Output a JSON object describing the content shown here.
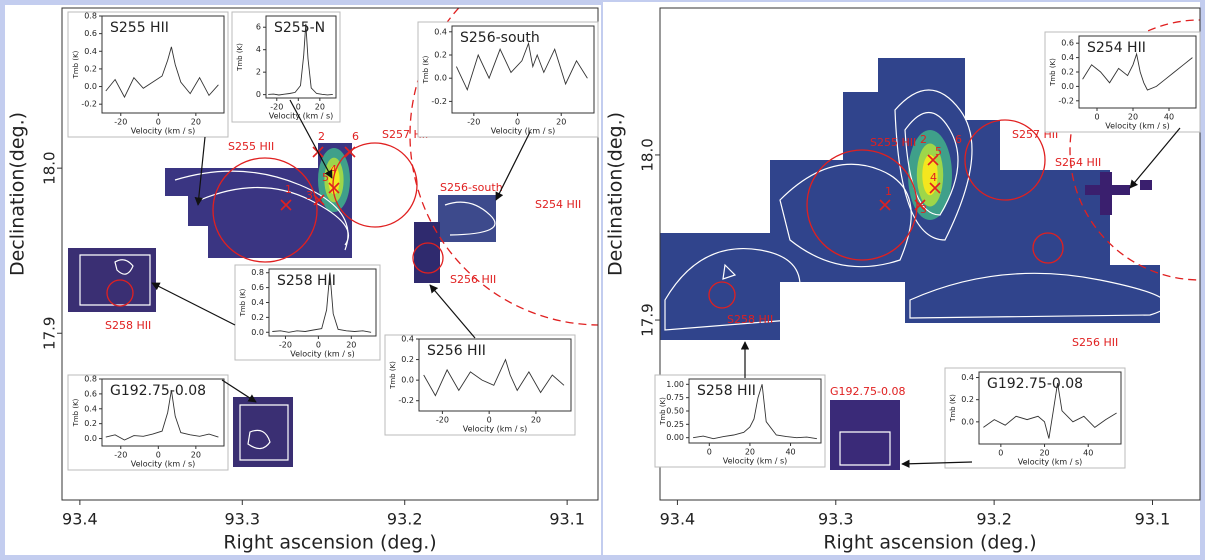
{
  "figure": {
    "spectrum_xlabel": "Velocity (km / s)",
    "spectrum_ylabel": "Tmb (K)",
    "panels": [
      {
        "xlabel": "Right ascension (deg.)",
        "ylabel": "Declination(deg.)",
        "xlim": [
          93.411,
          93.081
        ],
        "ylim": [
          17.799,
          18.097
        ],
        "xticks": [
          93.4,
          93.3,
          93.2,
          93.1
        ],
        "yticks": [
          {
            "value": 17.9,
            "label": "17.9"
          },
          {
            "value": 18,
            "label": "18.0"
          }
        ],
        "annotations": [
          "S255 HII",
          "S257 HII",
          "S256-south",
          "S254 HII",
          "S256 HII",
          "S258 HII",
          "2",
          "6",
          "1",
          "3",
          "5",
          "4"
        ],
        "insets": [
          {
            "title": "S255 HII",
            "xlim": [
              -30,
              35
            ],
            "ylim": [
              -0.3,
              0.8
            ],
            "xticks": [
              -20,
              0,
              20
            ],
            "yticks": [
              -0.2,
              {
                "value": 0,
                "label": "0.0"
              },
              0.2,
              0.4,
              0.6,
              0.8
            ],
            "x": [
              -28,
              -23,
              -18,
              -13,
              -8,
              -3,
              2,
              5,
              7,
              9,
              12,
              17,
              22,
              27,
              32
            ],
            "values": [
              -0.05,
              0.08,
              -0.12,
              0.1,
              -0.02,
              0.05,
              0.12,
              0.3,
              0.45,
              0.25,
              0.05,
              -0.08,
              0.1,
              -0.1,
              0.02
            ]
          },
          {
            "title": "S255-N",
            "xlim": [
              -30,
              35
            ],
            "ylim": [
              -0.3,
              7
            ],
            "xticks": [
              -20,
              0,
              20
            ],
            "yticks": [
              0,
              2,
              4,
              6
            ],
            "x": [
              -28,
              -23,
              -18,
              -13,
              -8,
              -3,
              2,
              5,
              7,
              9,
              12,
              17,
              22,
              27,
              32
            ],
            "values": [
              0.02,
              0.05,
              -0.03,
              0.04,
              0.1,
              0.2,
              0.8,
              3.5,
              6.3,
              3.2,
              0.6,
              0.1,
              0.03,
              -0.02,
              0.02
            ]
          },
          {
            "title": "S256-south",
            "xlim": [
              -30,
              35
            ],
            "ylim": [
              -0.3,
              0.45
            ],
            "xticks": [
              -20,
              0,
              20
            ],
            "yticks": [
              -0.2,
              {
                "value": 0,
                "label": "0.0"
              },
              0.2,
              0.4
            ],
            "x": [
              -28,
              -23,
              -18,
              -13,
              -8,
              -3,
              2,
              5,
              7,
              9,
              12,
              17,
              22,
              27,
              32
            ],
            "values": [
              0.1,
              -0.1,
              0.2,
              0,
              0.25,
              0.05,
              0.15,
              0.3,
              0.1,
              0.2,
              0.05,
              0.25,
              -0.05,
              0.15,
              0
            ]
          },
          {
            "title": "S258 HII",
            "xlim": [
              -30,
              35
            ],
            "ylim": [
              -0.05,
              0.85
            ],
            "xticks": [
              -20,
              0,
              20
            ],
            "yticks": [
              {
                "value": 0,
                "label": "0.0"
              },
              0.2,
              0.4,
              0.6,
              0.8
            ],
            "x": [
              -28,
              -23,
              -18,
              -13,
              -8,
              -3,
              2,
              5,
              7,
              9,
              12,
              17,
              22,
              27,
              32
            ],
            "values": [
              0.01,
              0.02,
              0,
              0.02,
              0.01,
              0.03,
              0.05,
              0.3,
              0.8,
              0.25,
              0.04,
              0.02,
              0.01,
              0.02,
              0
            ]
          },
          {
            "title": "G192.75-0.08",
            "xlim": [
              -30,
              35
            ],
            "ylim": [
              -0.1,
              0.8
            ],
            "xticks": [
              -20,
              0,
              20
            ],
            "yticks": [
              {
                "value": 0,
                "label": "0.0"
              },
              0.2,
              0.4,
              0.6,
              0.8
            ],
            "x": [
              -28,
              -23,
              -18,
              -13,
              -8,
              -3,
              2,
              5,
              7,
              9,
              12,
              17,
              22,
              27,
              32
            ],
            "values": [
              0.02,
              0.05,
              -0.02,
              0.04,
              0.03,
              0.06,
              0.1,
              0.35,
              0.65,
              0.3,
              0.08,
              0.05,
              0.03,
              0.06,
              0.02
            ]
          },
          {
            "title": "S256 HII",
            "xlim": [
              -30,
              35
            ],
            "ylim": [
              -0.3,
              0.4
            ],
            "xticks": [
              -20,
              0,
              20
            ],
            "yticks": [
              -0.2,
              {
                "value": 0,
                "label": "0.0"
              },
              0.2,
              0.4
            ],
            "x": [
              -28,
              -23,
              -18,
              -13,
              -8,
              -3,
              2,
              5,
              7,
              9,
              12,
              17,
              22,
              27,
              32
            ],
            "values": [
              0.05,
              -0.15,
              0.1,
              -0.1,
              0.08,
              0,
              -0.05,
              0.1,
              0.2,
              0.05,
              -0.1,
              0.08,
              -0.12,
              0.05,
              -0.05
            ]
          }
        ]
      },
      {
        "xlabel": "Right ascension (deg.)",
        "ylabel": "Declination(deg.)",
        "xlim": [
          93.411,
          93.07
        ],
        "ylim": [
          17.791,
          18.089
        ],
        "xticks": [
          93.4,
          93.3,
          93.2,
          93.1
        ],
        "yticks": [
          {
            "value": 17.9,
            "label": "17.9"
          },
          {
            "value": 18,
            "label": "18.0"
          }
        ],
        "annotations": [
          "S255 HII",
          "S257 HII",
          "S254 HII",
          "S256 HII",
          "S258 HII",
          "G192.75-0.08",
          "1",
          "2",
          "3",
          "4",
          "5",
          "6"
        ],
        "insets": [
          {
            "title": "S254 HII",
            "xlim": [
              -10,
              55
            ],
            "ylim": [
              -0.3,
              0.7
            ],
            "xticks": [
              0,
              20,
              40
            ],
            "yticks": [
              -0.2,
              {
                "value": 0,
                "label": "0.0"
              },
              0.2,
              0.4,
              0.6
            ],
            "x": [
              -8,
              -3,
              2,
              7,
              12,
              17,
              20,
              22,
              24,
              26,
              28,
              33,
              38,
              43,
              48,
              53
            ],
            "values": [
              0.1,
              0.3,
              0.2,
              0.05,
              0.25,
              0.15,
              0.3,
              0.45,
              0.2,
              0.05,
              -0.05,
              0,
              0.1,
              0.2,
              0.3,
              0.4
            ]
          },
          {
            "title": "S258 HII",
            "xlim": [
              -10,
              55
            ],
            "ylim": [
              -0.1,
              1.1
            ],
            "xticks": [
              0,
              20,
              40
            ],
            "yticks": [
              {
                "value": 0,
                "label": "0.00"
              },
              {
                "value": 0.25,
                "label": "0.25"
              },
              {
                "value": 0.5,
                "label": "0.50"
              },
              {
                "value": 0.75,
                "label": "0.75"
              },
              {
                "value": 1,
                "label": "1.00"
              }
            ],
            "x": [
              -8,
              -3,
              2,
              7,
              12,
              17,
              20,
              22,
              24,
              26,
              28,
              33,
              38,
              43,
              48,
              53
            ],
            "values": [
              0,
              0.03,
              -0.02,
              0.02,
              0.05,
              0.1,
              0.2,
              0.35,
              0.75,
              1,
              0.3,
              0.05,
              0.02,
              0,
              0.01,
              -0.02
            ]
          },
          {
            "title": "G192.75-0.08",
            "xlim": [
              -10,
              55
            ],
            "ylim": [
              -0.2,
              0.45
            ],
            "xticks": [
              0,
              20,
              40
            ],
            "yticks": [
              {
                "value": 0,
                "label": "0.0"
              },
              0.2,
              0.4
            ],
            "x": [
              -8,
              -3,
              2,
              7,
              12,
              17,
              20,
              22,
              24,
              26,
              28,
              33,
              38,
              43,
              48,
              53
            ],
            "values": [
              -0.05,
              0.02,
              -0.03,
              0.05,
              0.02,
              0.05,
              0,
              -0.15,
              0.1,
              0.35,
              0.1,
              0,
              0.05,
              -0.05,
              0.02,
              0.08
            ]
          }
        ]
      }
    ]
  }
}
